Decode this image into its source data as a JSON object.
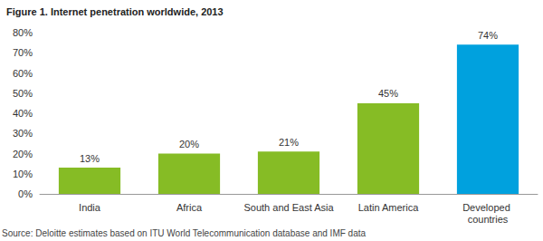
{
  "chart_data": {
    "type": "bar",
    "title": "Figure 1. Internet penetration worldwide, 2013",
    "source": "Source: Deloitte estimates based on ITU World Telecommunication database and IMF data",
    "categories": [
      "India",
      "Africa",
      "South and East Asia",
      "Latin America",
      "Developed countries"
    ],
    "values": [
      13,
      20,
      21,
      45,
      74
    ],
    "value_labels": [
      "13%",
      "20%",
      "21%",
      "45%",
      "74%"
    ],
    "colors": [
      "#86bc25",
      "#86bc25",
      "#86bc25",
      "#86bc25",
      "#00a1de"
    ],
    "ylim": [
      0,
      80
    ],
    "yticks": [
      {
        "value": 0,
        "label": "0%"
      },
      {
        "value": 10,
        "label": "10%"
      },
      {
        "value": 20,
        "label": "20%"
      },
      {
        "value": 30,
        "label": "30%"
      },
      {
        "value": 40,
        "label": "40%"
      },
      {
        "value": 50,
        "label": "50%"
      },
      {
        "value": 60,
        "label": "60%"
      },
      {
        "value": 70,
        "label": "70%"
      },
      {
        "value": 80,
        "label": "80%"
      }
    ],
    "grid": false,
    "data_labels": true
  }
}
